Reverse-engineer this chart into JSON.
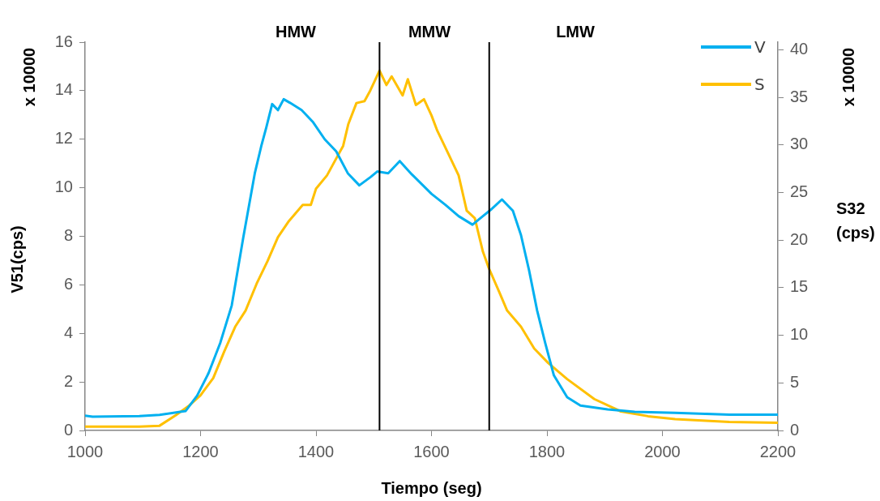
{
  "chart_data": {
    "type": "line",
    "xlabel": "Tiempo (seg)",
    "ylabel": "V51(cps)",
    "y2label": "S32 (cps)",
    "xlim": [
      1000,
      2200
    ],
    "xticks": [
      1000,
      1200,
      1400,
      1600,
      1800,
      2000,
      2200
    ],
    "ylim": [
      0,
      16
    ],
    "yticks": [
      0,
      2,
      4,
      6,
      8,
      10,
      12,
      14,
      16
    ],
    "y2lim": [
      0,
      40.8
    ],
    "y2ticks": [
      0,
      5,
      10,
      15,
      20,
      25,
      30,
      35,
      40
    ],
    "grid": false,
    "legend": "top right",
    "marker": "none",
    "line_style": "solid",
    "ref_lines": [
      {
        "axis": "x",
        "value": 1510,
        "color": "#000000"
      },
      {
        "axis": "x",
        "value": 1700,
        "color": "#000000"
      }
    ],
    "annotations": [
      "HMW",
      "MMW",
      "LMW",
      "x 10000",
      "x 10000"
    ],
    "series": [
      {
        "name": "V",
        "color": "#00b0f0",
        "x": [
          1000,
          1013,
          1094,
          1129,
          1174,
          1194,
          1214,
          1234,
          1254,
          1274,
          1294,
          1305,
          1314,
          1324,
          1334,
          1344,
          1355,
          1375,
          1395,
          1415,
          1435,
          1455,
          1475,
          1495,
          1506,
          1525,
          1545,
          1566,
          1600,
          1624,
          1647,
          1671,
          1689,
          1704,
          1722,
          1741,
          1755,
          1769,
          1783,
          1797,
          1812,
          1835,
          1858,
          1905,
          1952,
          2022,
          2116,
          2200
        ],
        "values": [
          0.61,
          0.57,
          0.59,
          0.64,
          0.8,
          1.43,
          2.37,
          3.6,
          5.15,
          7.95,
          10.6,
          11.7,
          12.5,
          13.45,
          13.2,
          13.65,
          13.5,
          13.2,
          12.7,
          12.0,
          11.5,
          10.6,
          10.1,
          10.45,
          10.67,
          10.6,
          11.1,
          10.55,
          9.75,
          9.3,
          8.83,
          8.48,
          8.83,
          9.12,
          9.52,
          9.05,
          8.05,
          6.6,
          4.94,
          3.6,
          2.27,
          1.37,
          1.03,
          0.87,
          0.77,
          0.73,
          0.65,
          0.65
        ]
      },
      {
        "name": "S",
        "color": "#ffc000",
        "axis": "y2",
        "x": [
          1000,
          1094,
          1129,
          1157,
          1180,
          1200,
          1222,
          1241,
          1260,
          1278,
          1297,
          1316,
          1334,
          1353,
          1377,
          1391,
          1400,
          1419,
          1437,
          1447,
          1456,
          1470,
          1484,
          1493,
          1510,
          1522,
          1531,
          1550,
          1559,
          1573,
          1587,
          1600,
          1610,
          1629,
          1647,
          1661,
          1675,
          1689,
          1699,
          1717,
          1731,
          1755,
          1778,
          1802,
          1835,
          1882,
          1928,
          1975,
          2022,
          2116,
          2200
        ],
        "values": [
          0.4,
          0.4,
          0.5,
          1.6,
          2.6,
          3.7,
          5.5,
          8.3,
          10.9,
          12.6,
          15.4,
          17.8,
          20.3,
          22.0,
          23.7,
          23.7,
          25.4,
          26.8,
          28.8,
          29.9,
          32.2,
          34.4,
          34.6,
          35.6,
          37.8,
          36.3,
          37.2,
          35.2,
          36.9,
          34.2,
          34.8,
          33.1,
          31.5,
          29.1,
          26.8,
          23.1,
          22.3,
          18.8,
          17.1,
          14.6,
          12.6,
          10.9,
          8.6,
          7.1,
          5.4,
          3.3,
          2.0,
          1.5,
          1.2,
          0.9,
          0.8
        ]
      }
    ]
  }
}
